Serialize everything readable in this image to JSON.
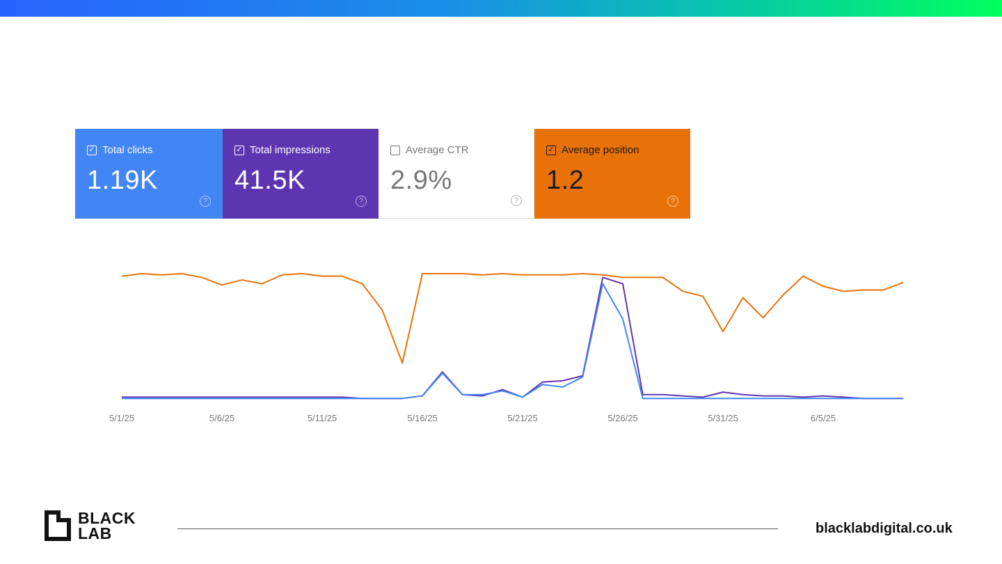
{
  "colors": {
    "clicks": "#4285f4",
    "impressions": "#5e35b1",
    "ctr": "#ffffff",
    "position": "#e8710a"
  },
  "cards": [
    {
      "label": "Total clicks",
      "value": "1.19K",
      "checked": true,
      "icon": "help-circle-icon"
    },
    {
      "label": "Total impressions",
      "value": "41.5K",
      "checked": true,
      "icon": "help-circle-icon"
    },
    {
      "label": "Average CTR",
      "value": "2.9%",
      "checked": false,
      "icon": "help-circle-icon"
    },
    {
      "label": "Average position",
      "value": "1.2",
      "checked": true,
      "icon": "help-circle-icon"
    }
  ],
  "chart_data": {
    "type": "line",
    "x_ticks": [
      "5/1/25",
      "5/6/25",
      "5/11/25",
      "5/16/25",
      "5/21/25",
      "5/26/25",
      "5/31/25",
      "6/5/25"
    ],
    "x_start": "5/1/25",
    "x_end": "6/9/25",
    "grid": false,
    "y_axis_shown": false,
    "ylim": [
      0,
      100
    ],
    "series": [
      {
        "key": "position",
        "color": "#e8710a",
        "values": [
          98,
          100,
          99,
          100,
          97,
          91,
          95,
          92,
          99,
          100,
          98,
          98,
          92,
          71,
          29,
          100,
          100,
          100,
          99,
          100,
          99,
          99,
          99,
          100,
          99,
          97,
          97,
          97,
          86,
          82,
          54,
          81,
          65,
          83,
          98,
          90,
          86,
          87,
          87,
          93
        ]
      },
      {
        "key": "impressions",
        "color": "#5e35b1",
        "values": [
          2,
          2,
          2,
          2,
          2,
          2,
          2,
          2,
          2,
          2,
          2,
          2,
          1,
          1,
          1,
          3,
          22,
          4,
          3,
          8,
          2,
          14,
          15,
          19,
          97,
          92,
          4,
          4,
          3,
          2,
          6,
          4,
          3,
          3,
          2,
          3,
          2,
          1,
          1,
          1
        ]
      },
      {
        "key": "clicks",
        "color": "#4285f4",
        "values": [
          1,
          1,
          1,
          1,
          1,
          1,
          1,
          1,
          1,
          1,
          1,
          1,
          1,
          1,
          1,
          3,
          21,
          4,
          4,
          7,
          2,
          12,
          10,
          18,
          92,
          64,
          1,
          1,
          1,
          1,
          1,
          1,
          1,
          1,
          1,
          1,
          1,
          1,
          1,
          1
        ]
      }
    ]
  },
  "footer": {
    "brand_line1": "BLACK",
    "brand_line2": "LAB",
    "url": "blacklabdigital.co.uk"
  }
}
